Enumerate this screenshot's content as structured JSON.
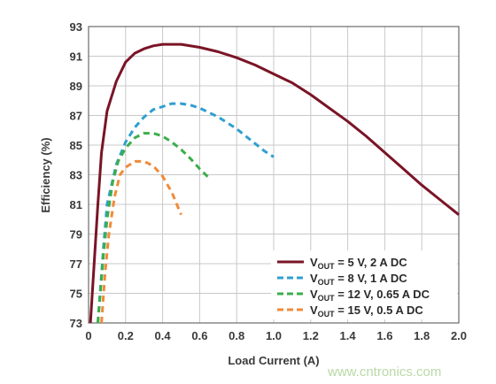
{
  "chart_data": {
    "type": "line",
    "xlabel": "Load Current (A)",
    "ylabel": "Efficiency (%)",
    "xlim": [
      0,
      2.0
    ],
    "ylim": [
      73,
      93
    ],
    "xticks": [
      "0",
      "0.2",
      "0.4",
      "0.6",
      "0.8",
      "1.0",
      "1.2",
      "1.4",
      "1.6",
      "1.8",
      "2.0"
    ],
    "yticks": [
      "73",
      "75",
      "77",
      "79",
      "81",
      "83",
      "85",
      "87",
      "89",
      "91",
      "93"
    ],
    "grid": true,
    "legend_position": "bottom-right",
    "series": [
      {
        "name_main": "V",
        "name_sub": "OUT",
        "name_rest": " = 5 V, 2 A DC",
        "color": "#7a1426",
        "dashed": false,
        "x": [
          0.01,
          0.03,
          0.05,
          0.07,
          0.1,
          0.15,
          0.2,
          0.25,
          0.3,
          0.35,
          0.4,
          0.5,
          0.6,
          0.7,
          0.8,
          0.9,
          1.0,
          1.1,
          1.2,
          1.3,
          1.4,
          1.5,
          1.6,
          1.7,
          1.8,
          1.9,
          2.0
        ],
        "y": [
          73.0,
          77.0,
          81.0,
          84.5,
          87.3,
          89.3,
          90.6,
          91.2,
          91.5,
          91.7,
          91.8,
          91.8,
          91.6,
          91.3,
          90.9,
          90.4,
          89.8,
          89.2,
          88.4,
          87.5,
          86.6,
          85.6,
          84.5,
          83.4,
          82.3,
          81.3,
          80.3
        ]
      },
      {
        "name_main": "V",
        "name_sub": "OUT",
        "name_rest": " = 8 V, 1 A DC",
        "color": "#2f9fd0",
        "dashed": true,
        "x": [
          0.05,
          0.08,
          0.1,
          0.15,
          0.2,
          0.25,
          0.3,
          0.35,
          0.4,
          0.45,
          0.5,
          0.55,
          0.6,
          0.65,
          0.7,
          0.75,
          0.8,
          0.85,
          0.9,
          0.95,
          1.0
        ],
        "y": [
          73.0,
          78.0,
          81.0,
          83.7,
          85.2,
          86.2,
          86.9,
          87.4,
          87.6,
          87.8,
          87.8,
          87.7,
          87.5,
          87.2,
          86.9,
          86.5,
          86.1,
          85.6,
          85.1,
          84.6,
          84.2
        ]
      },
      {
        "name_main": "V",
        "name_sub": "OUT",
        "name_rest": " = 12 V, 0.65 A DC",
        "color": "#3cae4a",
        "dashed": true,
        "x": [
          0.05,
          0.08,
          0.1,
          0.13,
          0.16,
          0.2,
          0.25,
          0.3,
          0.35,
          0.4,
          0.45,
          0.5,
          0.55,
          0.6,
          0.65
        ],
        "y": [
          73.0,
          77.5,
          80.0,
          82.5,
          83.9,
          84.8,
          85.5,
          85.8,
          85.8,
          85.6,
          85.2,
          84.7,
          84.1,
          83.4,
          82.8
        ]
      },
      {
        "name_main": "V",
        "name_sub": "OUT",
        "name_rest": " = 15 V, 0.5 A DC",
        "color": "#f08a3a",
        "dashed": true,
        "x": [
          0.07,
          0.09,
          0.11,
          0.14,
          0.17,
          0.2,
          0.25,
          0.3,
          0.35,
          0.4,
          0.45,
          0.5
        ],
        "y": [
          73.0,
          76.5,
          79.0,
          81.5,
          83.0,
          83.5,
          83.9,
          83.9,
          83.6,
          82.9,
          81.8,
          80.3
        ]
      }
    ]
  },
  "watermark": "www.cntronics.com"
}
